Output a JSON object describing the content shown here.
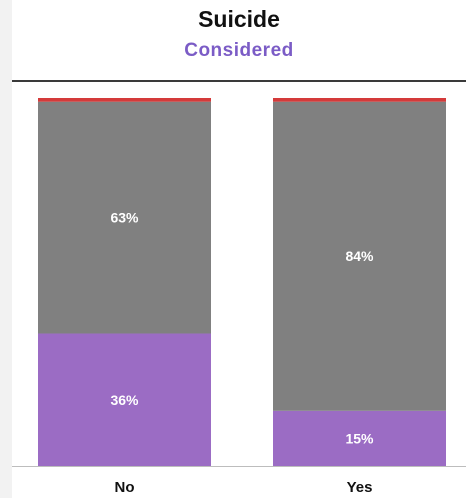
{
  "header": {
    "title": "Suicide",
    "subtitle": "Considered"
  },
  "colors": {
    "purple": "#9b6cc4",
    "gray": "#808080",
    "red": "#d43a3a",
    "label": "#ffffff"
  },
  "chart_data": {
    "type": "bar",
    "stacked": true,
    "categories": [
      "No",
      "Yes"
    ],
    "series": [
      {
        "key": "bottom",
        "values": [
          36,
          15
        ],
        "labels": [
          "36%",
          "15%"
        ]
      },
      {
        "key": "middle",
        "values": [
          63,
          84
        ],
        "labels": [
          "63%",
          "84%"
        ]
      },
      {
        "key": "top",
        "values": [
          1,
          1
        ]
      }
    ],
    "ylim": [
      0,
      100
    ],
    "grid": false,
    "legend": "none"
  }
}
